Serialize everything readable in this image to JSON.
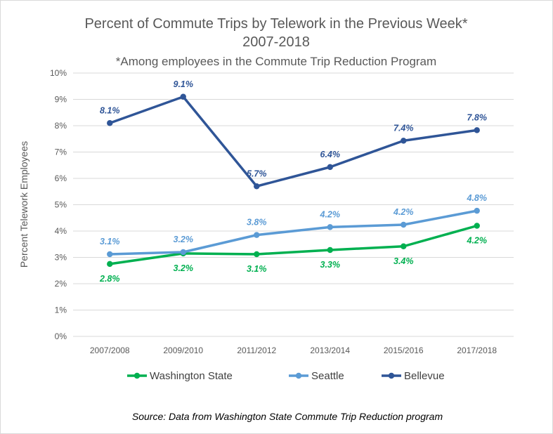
{
  "chart_data": {
    "type": "line",
    "title": "Percent of Commute Trips by Telework in the Previous Week*",
    "title_line2": "2007-2018",
    "subtitle": "*Among employees in the Commute Trip Reduction Program",
    "ylabel": "Percent Telework Employees",
    "xlabel": "",
    "categories": [
      "2007/2008",
      "2009/2010",
      "2011/2012",
      "2013/2014",
      "2015/2016",
      "2017/2018"
    ],
    "ylim": [
      0,
      10
    ],
    "yticks": [
      "0%",
      "1%",
      "2%",
      "3%",
      "4%",
      "5%",
      "6%",
      "7%",
      "8%",
      "9%",
      "10%"
    ],
    "grid": "horizontal",
    "legend_position": "bottom",
    "series": [
      {
        "name": "Washington State",
        "color": "#00b050",
        "values": [
          2.75,
          3.15,
          3.12,
          3.28,
          3.42,
          4.2
        ],
        "labels": [
          "2.8%",
          "3.2%",
          "3.1%",
          "3.3%",
          "3.4%",
          "4.2%"
        ],
        "label_position": "below"
      },
      {
        "name": "Seattle",
        "color": "#5b9bd5",
        "values": [
          3.12,
          3.2,
          3.85,
          4.15,
          4.24,
          4.77
        ],
        "labels": [
          "3.1%",
          "3.2%",
          "3.8%",
          "4.2%",
          "4.2%",
          "4.8%"
        ],
        "label_position": "above"
      },
      {
        "name": "Bellevue",
        "color": "#2f5597",
        "values": [
          8.1,
          9.1,
          5.7,
          6.43,
          7.43,
          7.83
        ],
        "labels": [
          "8.1%",
          "9.1%",
          "5.7%",
          "6.4%",
          "7.4%",
          "7.8%"
        ],
        "label_position": "above"
      }
    ],
    "source": "Source: Data from Washington State Commute Trip Reduction program"
  }
}
